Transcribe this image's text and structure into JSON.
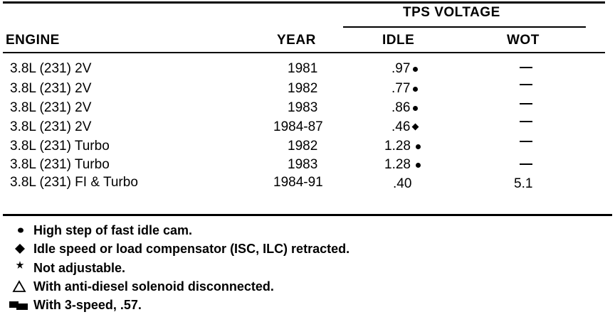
{
  "table": {
    "group_header": "TPS VOLTAGE",
    "columns": {
      "engine": "ENGINE",
      "year": "YEAR",
      "idle": "IDLE",
      "wot": "WOT"
    },
    "rows": [
      {
        "engine": "3.8L (231) 2V",
        "year": "1981",
        "idle": ".97",
        "idle_note": "circle",
        "wot": "—"
      },
      {
        "engine": "3.8L (231) 2V",
        "year": "1982",
        "idle": ".77",
        "idle_note": "circle",
        "wot": "—"
      },
      {
        "engine": "3.8L (231) 2V",
        "year": "1983",
        "idle": ".86",
        "idle_note": "circle",
        "wot": "—"
      },
      {
        "engine": "3.8L (231) 2V",
        "year": "1984-87",
        "idle": ".46",
        "idle_note": "diamond",
        "wot": "—"
      },
      {
        "engine": "3.8L (231) Turbo",
        "year": "1982",
        "idle": "1.28",
        "idle_note": "circle",
        "wot": "—"
      },
      {
        "engine": "3.8L (231) Turbo",
        "year": "1983",
        "idle": "1.28",
        "idle_note": "circle",
        "wot": "—"
      },
      {
        "engine": "3.8L (231) FI & Turbo",
        "year": "1984-91",
        "idle": ".40",
        "idle_note": "",
        "wot": "5.1"
      }
    ]
  },
  "legend": [
    {
      "symbol": "circle-icon",
      "text": "High step of fast idle cam."
    },
    {
      "symbol": "diamond-icon",
      "text": "Idle speed or load compensator (ISC, ILC) retracted."
    },
    {
      "symbol": "asterisk-icon",
      "text": "Not adjustable."
    },
    {
      "symbol": "triangle-icon",
      "text": "With anti-diesel solenoid disconnected."
    },
    {
      "symbol": "flag-icon",
      "text": "With 3-speed, .57."
    }
  ]
}
